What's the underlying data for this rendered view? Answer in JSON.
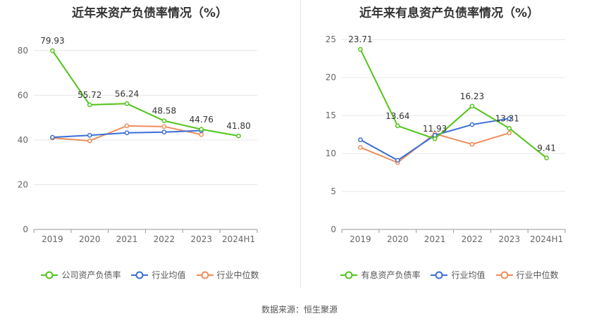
{
  "footer": "数据来源：恒生聚源",
  "chart_data": [
    {
      "type": "line",
      "title": "近年来资产负债率情况（%）",
      "categories": [
        "2019",
        "2020",
        "2021",
        "2022",
        "2023",
        "2024H1"
      ],
      "ylim": [
        0,
        90
      ],
      "yticks": [
        0,
        20,
        40,
        60,
        80
      ],
      "grid": true,
      "legend_position": "bottom",
      "series": [
        {
          "name": "公司资产负债率",
          "color": "#52c41a",
          "values": [
            79.93,
            55.72,
            56.24,
            48.58,
            44.76,
            41.8
          ],
          "labels": [
            "79.93",
            "55.72",
            "56.24",
            "48.58",
            "44.76",
            "41.80"
          ]
        },
        {
          "name": "行业均值",
          "color": "#3a6fd8",
          "values": [
            41.2,
            42.1,
            43.2,
            43.5,
            44.2,
            null
          ]
        },
        {
          "name": "行业中位数",
          "color": "#f08c5a",
          "values": [
            40.9,
            39.6,
            46.3,
            46.0,
            42.4,
            null
          ]
        }
      ]
    },
    {
      "type": "line",
      "title": "近年来有息资产负债率情况（%）",
      "categories": [
        "2019",
        "2020",
        "2021",
        "2022",
        "2023",
        "2024H1"
      ],
      "ylim": [
        0,
        26.5
      ],
      "yticks": [
        0,
        5,
        10,
        15,
        20,
        25
      ],
      "grid": true,
      "legend_position": "bottom",
      "series": [
        {
          "name": "有息资产负债率",
          "color": "#52c41a",
          "values": [
            23.71,
            13.64,
            11.93,
            16.23,
            13.31,
            9.41
          ],
          "labels": [
            "23.71",
            "13.64",
            "11.93",
            "16.23",
            "13.31",
            "9.41"
          ]
        },
        {
          "name": "行业均值",
          "color": "#3a6fd8",
          "values": [
            11.8,
            9.1,
            12.4,
            13.8,
            14.6,
            null
          ]
        },
        {
          "name": "行业中位数",
          "color": "#f08c5a",
          "values": [
            10.8,
            8.8,
            12.6,
            11.2,
            12.7,
            null
          ]
        }
      ]
    }
  ]
}
